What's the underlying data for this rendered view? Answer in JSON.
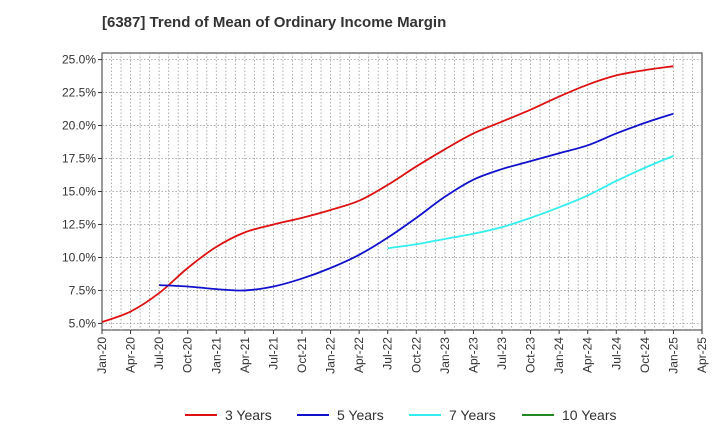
{
  "chart_data": {
    "type": "line",
    "title": "[6387]  Trend of Mean of Ordinary Income Margin",
    "xlabel": "",
    "ylabel": "",
    "x_ticks": [
      "Jan-20",
      "Apr-20",
      "Jul-20",
      "Oct-20",
      "Jan-21",
      "Apr-21",
      "Jul-21",
      "Oct-21",
      "Jan-22",
      "Apr-22",
      "Jul-22",
      "Oct-22",
      "Jan-23",
      "Apr-23",
      "Jul-23",
      "Oct-23",
      "Jan-24",
      "Apr-24",
      "Jul-24",
      "Oct-24",
      "Jan-25",
      "Apr-25"
    ],
    "y_ticks": [
      "5.0%",
      "7.5%",
      "10.0%",
      "12.5%",
      "15.0%",
      "17.5%",
      "20.0%",
      "22.5%",
      "25.0%"
    ],
    "ylim": [
      4.5,
      25.5
    ],
    "grid": true,
    "legend_position": "bottom",
    "series": [
      {
        "name": "3 Years",
        "color": "#dd1111",
        "x": [
          "Jan-20",
          "Apr-20",
          "Jul-20",
          "Oct-20",
          "Jan-21",
          "Apr-21",
          "Jul-21",
          "Oct-21",
          "Jan-22",
          "Apr-22",
          "Jul-22",
          "Oct-22",
          "Jan-23",
          "Apr-23",
          "Jul-23",
          "Oct-23",
          "Jan-24",
          "Apr-24",
          "Jul-24",
          "Oct-24",
          "Jan-25"
        ],
        "values": [
          5.1,
          5.9,
          7.3,
          9.2,
          10.8,
          11.9,
          12.5,
          13.0,
          13.6,
          14.3,
          15.5,
          16.9,
          18.2,
          19.4,
          20.3,
          21.2,
          22.2,
          23.1,
          23.8,
          24.2,
          24.5
        ]
      },
      {
        "name": "5 Years",
        "color": "#1111cc",
        "x": [
          "Jul-20",
          "Oct-20",
          "Jan-21",
          "Apr-21",
          "Jul-21",
          "Oct-21",
          "Jan-22",
          "Apr-22",
          "Jul-22",
          "Oct-22",
          "Jan-23",
          "Apr-23",
          "Jul-23",
          "Oct-23",
          "Jan-24",
          "Apr-24",
          "Jul-24",
          "Oct-24",
          "Jan-25"
        ],
        "values": [
          7.9,
          7.8,
          7.6,
          7.5,
          7.8,
          8.4,
          9.2,
          10.2,
          11.5,
          13.0,
          14.6,
          15.9,
          16.7,
          17.3,
          17.9,
          18.5,
          19.4,
          20.2,
          20.9
        ]
      },
      {
        "name": "7 Years",
        "color": "#33eeee",
        "x": [
          "Jul-22",
          "Oct-22",
          "Jan-23",
          "Apr-23",
          "Jul-23",
          "Oct-23",
          "Jan-24",
          "Apr-24",
          "Jul-24",
          "Oct-24",
          "Jan-25"
        ],
        "values": [
          10.7,
          11.0,
          11.4,
          11.8,
          12.3,
          13.0,
          13.8,
          14.7,
          15.8,
          16.8,
          17.7
        ]
      },
      {
        "name": "10 Years",
        "color": "#228822",
        "x": [],
        "values": []
      }
    ]
  }
}
